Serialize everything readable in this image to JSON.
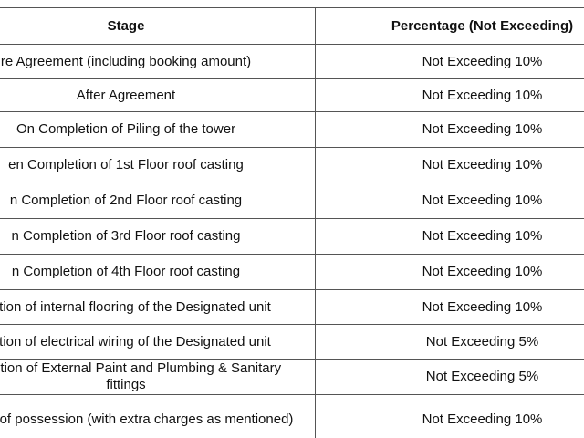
{
  "table": {
    "header": [
      "Stage",
      "Percentage (Not Exceeding)"
    ],
    "rows": [
      [
        "re Agreement (including booking amount)",
        "Not Exceeding 10%"
      ],
      [
        "After Agreement",
        "Not Exceeding 10%"
      ],
      [
        "On Completion of Piling of the tower",
        "Not Exceeding 10%"
      ],
      [
        "en Completion of 1st Floor roof casting",
        "Not Exceeding 10%"
      ],
      [
        "n Completion of 2nd Floor roof casting",
        "Not Exceeding 10%"
      ],
      [
        "n Completion of 3rd Floor roof casting",
        "Not Exceeding 10%"
      ],
      [
        "n Completion of 4th Floor roof casting",
        "Not Exceeding 10%"
      ],
      [
        "pletion of internal flooring of the Designated unit",
        "Not Exceeding 10%"
      ],
      [
        "pletion of electrical wiring of the Designated unit",
        "Not Exceeding 5%"
      ],
      [
        "mpletion of External Paint and Plumbing & Sanitary fittings",
        "Not Exceeding 5%"
      ],
      [
        "e time of possession (with extra charges as mentioned)",
        "Not Exceeding 10%"
      ]
    ]
  }
}
